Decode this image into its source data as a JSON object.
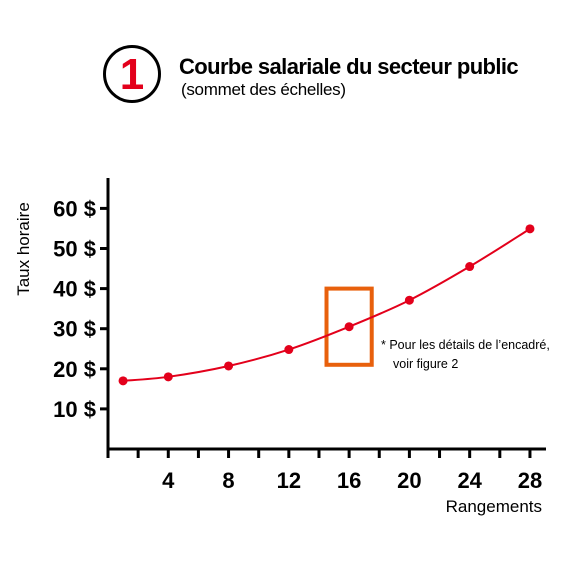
{
  "figure_number": "1",
  "title": "Courbe salariale du secteur public",
  "subtitle": "(sommet des échelles)",
  "note": {
    "line1": "*  Pour les détails de l’encadré,",
    "line2": "voir figure 2"
  },
  "colors": {
    "series": "#e3001b",
    "highlight_box": "#e8600c",
    "axis": "#000000"
  },
  "chart_data": {
    "type": "line",
    "xlabel": "Rangements",
    "ylabel": "Taux horaire",
    "xlim": [
      0,
      28
    ],
    "ylim": [
      0,
      65
    ],
    "x_ticks": [
      4,
      8,
      12,
      16,
      20,
      24,
      28
    ],
    "x_tick_labels": [
      "4",
      "8",
      "12",
      "16",
      "20",
      "24",
      "28"
    ],
    "y_ticks": [
      10,
      20,
      30,
      40,
      50,
      60
    ],
    "y_tick_labels": [
      "10 $",
      "20 $",
      "30 $",
      "40 $",
      "50 $",
      "60 $"
    ],
    "minor_x_ticks": [
      0,
      2,
      6,
      10,
      14,
      18,
      22,
      26
    ],
    "grid": false,
    "legend": "none",
    "series": [
      {
        "x": [
          1,
          4,
          8,
          12,
          16,
          20,
          24,
          28
        ],
        "y": [
          17,
          18,
          20.7,
          24.8,
          30.5,
          37.1,
          45.5,
          54.9
        ]
      }
    ],
    "highlight": {
      "x_range": [
        14.5,
        17.5
      ],
      "y_range": [
        21,
        40
      ]
    }
  }
}
